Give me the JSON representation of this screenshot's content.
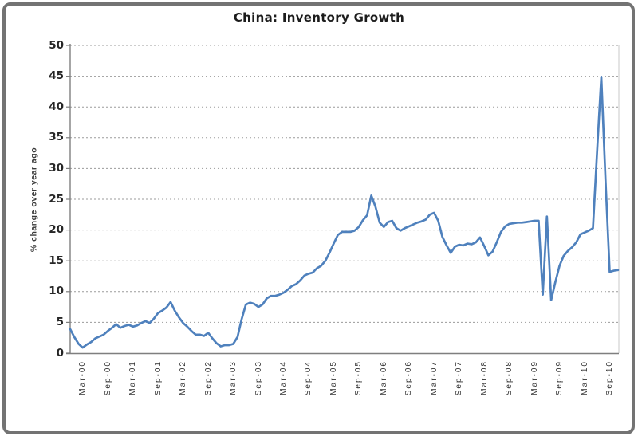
{
  "chart_data": {
    "type": "line",
    "title": "China: Inventory Growth",
    "xlabel": "",
    "ylabel": "% change over year ago",
    "ylim": [
      0,
      50
    ],
    "yticks": [
      0,
      5,
      10,
      15,
      20,
      25,
      30,
      35,
      40,
      45,
      50
    ],
    "grid": "horizontal-dashed",
    "legend": "none",
    "x_tick_start_index": 3,
    "x_tick_every": 6,
    "x_tick_labels": [
      "Mar-00",
      "Sep-00",
      "Mar-01",
      "Sep-01",
      "Mar-02",
      "Sep-02",
      "Mar-03",
      "Sep-03",
      "Mar-04",
      "Sep-04",
      "Mar-05",
      "Sep-05",
      "Mar-06",
      "Sep-06",
      "Mar-07",
      "Sep-07",
      "Mar-08",
      "Sep-08",
      "Mar-09",
      "Sep-09",
      "Mar-10",
      "Sep-10"
    ],
    "series": [
      {
        "name": "inventory-growth",
        "color": "#4f81bd",
        "values": [
          3.9,
          2.6,
          1.5,
          0.9,
          1.4,
          1.8,
          2.4,
          2.7,
          3.0,
          3.6,
          4.1,
          4.7,
          4.1,
          4.4,
          4.6,
          4.3,
          4.5,
          4.9,
          5.2,
          4.9,
          5.6,
          6.5,
          6.9,
          7.4,
          8.3,
          6.9,
          5.8,
          4.9,
          4.3,
          3.6,
          3.0,
          3.0,
          2.8,
          3.3,
          2.4,
          1.6,
          1.1,
          1.3,
          1.3,
          1.5,
          2.6,
          5.5,
          7.9,
          8.2,
          8.0,
          7.5,
          7.9,
          8.9,
          9.3,
          9.3,
          9.5,
          9.8,
          10.3,
          10.9,
          11.2,
          11.8,
          12.6,
          12.9,
          13.1,
          13.8,
          14.2,
          15.0,
          16.3,
          17.8,
          19.2,
          19.7,
          19.7,
          19.7,
          19.9,
          20.5,
          21.6,
          22.4,
          25.6,
          23.8,
          21.2,
          20.5,
          21.3,
          21.5,
          20.3,
          19.9,
          20.3,
          20.6,
          20.9,
          21.2,
          21.4,
          21.7,
          22.5,
          22.8,
          21.5,
          18.9,
          17.5,
          16.3,
          17.3,
          17.6,
          17.5,
          17.8,
          17.7,
          18.0,
          18.8,
          17.4,
          15.9,
          16.5,
          18.0,
          19.7,
          20.6,
          21.0,
          21.1,
          21.2,
          21.2,
          21.3,
          21.4,
          21.5,
          21.5,
          9.5,
          22.2,
          8.6,
          11.5,
          14.2,
          15.8,
          16.6,
          17.2,
          18.0,
          19.3,
          19.6,
          19.9,
          20.3,
          33.0,
          44.9,
          28.0,
          13.2,
          13.4,
          13.5
        ]
      }
    ],
    "colors": {
      "line": "#4f81bd",
      "gridline": "#9b9b9b",
      "axis": "#7f7f7f",
      "plot_border": "#c9c9c9",
      "frame_border": "#737373",
      "text": "#333333",
      "background": "#ffffff"
    }
  }
}
